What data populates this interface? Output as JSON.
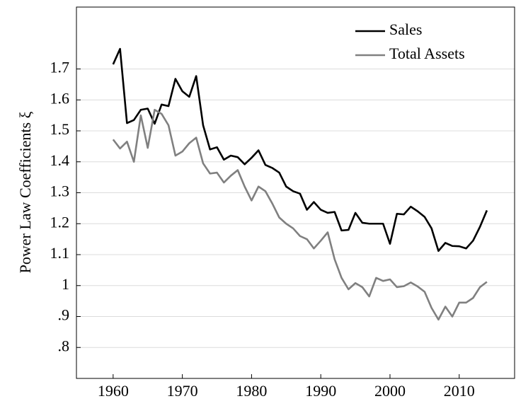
{
  "chart_data": {
    "type": "line",
    "y_label": "Power Law Coefficients ξ",
    "x": [
      1960,
      1961,
      1962,
      1963,
      1964,
      1965,
      1966,
      1967,
      1968,
      1969,
      1970,
      1971,
      1972,
      1973,
      1974,
      1975,
      1976,
      1977,
      1978,
      1979,
      1980,
      1981,
      1982,
      1983,
      1984,
      1985,
      1986,
      1987,
      1988,
      1989,
      1990,
      1991,
      1992,
      1993,
      1994,
      1995,
      1996,
      1997,
      1998,
      1999,
      2000,
      2001,
      2002,
      2003,
      2004,
      2005,
      2006,
      2007,
      2008,
      2009,
      2010,
      2011,
      2012,
      2013,
      2014
    ],
    "series": [
      {
        "name": "Sales",
        "color": "#000000",
        "values": [
          1.715,
          1.765,
          1.525,
          1.535,
          1.568,
          1.572,
          1.523,
          1.585,
          1.58,
          1.668,
          1.628,
          1.61,
          1.677,
          1.518,
          1.44,
          1.447,
          1.407,
          1.42,
          1.415,
          1.392,
          1.413,
          1.437,
          1.39,
          1.38,
          1.365,
          1.32,
          1.305,
          1.297,
          1.245,
          1.27,
          1.245,
          1.235,
          1.238,
          1.178,
          1.18,
          1.235,
          1.203,
          1.2,
          1.2,
          1.2,
          1.135,
          1.232,
          1.23,
          1.255,
          1.24,
          1.222,
          1.185,
          1.112,
          1.138,
          1.128,
          1.127,
          1.12,
          1.145,
          1.19,
          1.243
        ]
      },
      {
        "name": "Total Assets",
        "color": "#808080",
        "values": [
          1.472,
          1.443,
          1.465,
          1.4,
          1.55,
          1.445,
          1.568,
          1.555,
          1.518,
          1.42,
          1.433,
          1.46,
          1.478,
          1.395,
          1.362,
          1.365,
          1.333,
          1.355,
          1.373,
          1.32,
          1.275,
          1.32,
          1.305,
          1.265,
          1.22,
          1.2,
          1.185,
          1.16,
          1.15,
          1.12,
          1.145,
          1.172,
          1.085,
          1.025,
          0.988,
          1.008,
          0.995,
          0.965,
          1.025,
          1.015,
          1.02,
          0.995,
          0.998,
          1.01,
          0.997,
          0.98,
          0.928,
          0.89,
          0.932,
          0.9,
          0.945,
          0.945,
          0.96,
          0.995,
          1.012
        ]
      }
    ],
    "xlim": [
      1954.7,
      2018
    ],
    "xticks": [
      1960,
      1970,
      1980,
      1990,
      2000,
      2010
    ],
    "ylim": [
      0.7,
      1.9
    ],
    "yticks": [
      {
        "value": 0.8,
        "label": ".8"
      },
      {
        "value": 0.9,
        "label": ".9"
      },
      1,
      1.1,
      1.2,
      1.3,
      1.4,
      1.5,
      1.6,
      1.7
    ],
    "grid": true,
    "legend": "top-right"
  }
}
